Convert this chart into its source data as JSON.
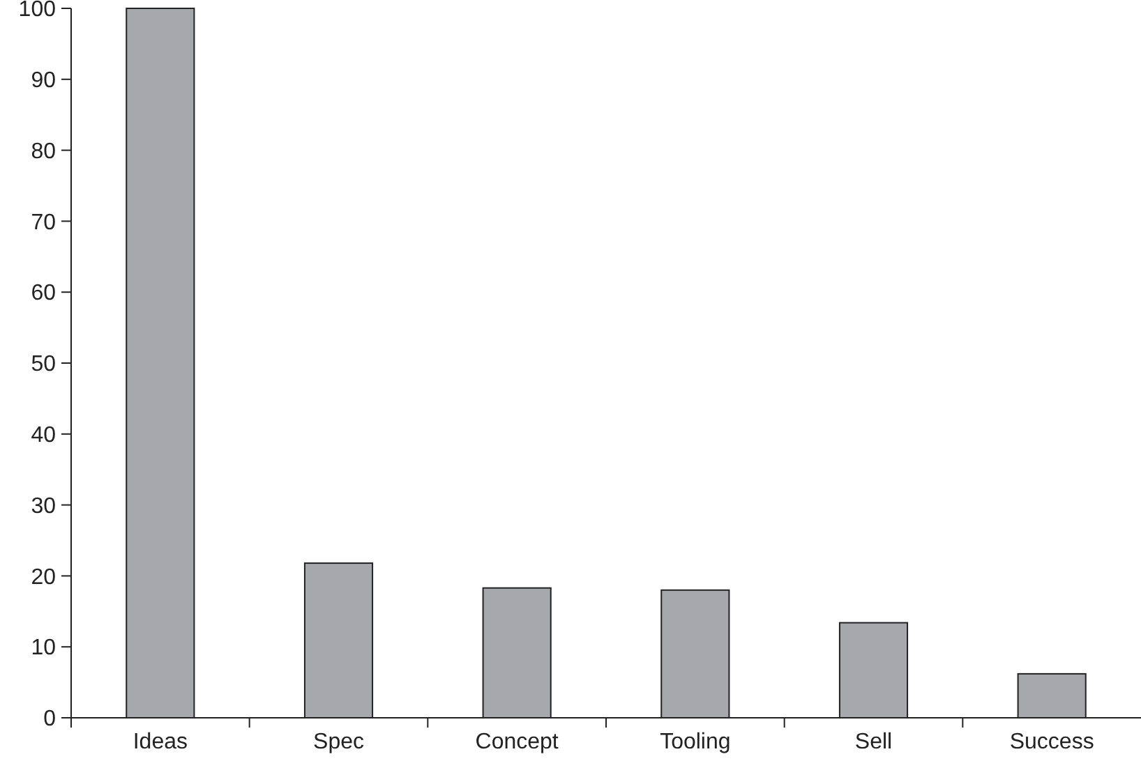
{
  "chart_data": {
    "type": "bar",
    "categories": [
      "Ideas",
      "Spec",
      "Concept",
      "Tooling",
      "Sell",
      "Success"
    ],
    "values": [
      100,
      21.8,
      18.3,
      18.0,
      13.4,
      6.2
    ],
    "color": "#a7a8ac",
    "ylim": [
      0,
      100
    ],
    "yticks": [
      0,
      10,
      20,
      30,
      40,
      50,
      60,
      70,
      80,
      90,
      100
    ],
    "grid": false
  }
}
